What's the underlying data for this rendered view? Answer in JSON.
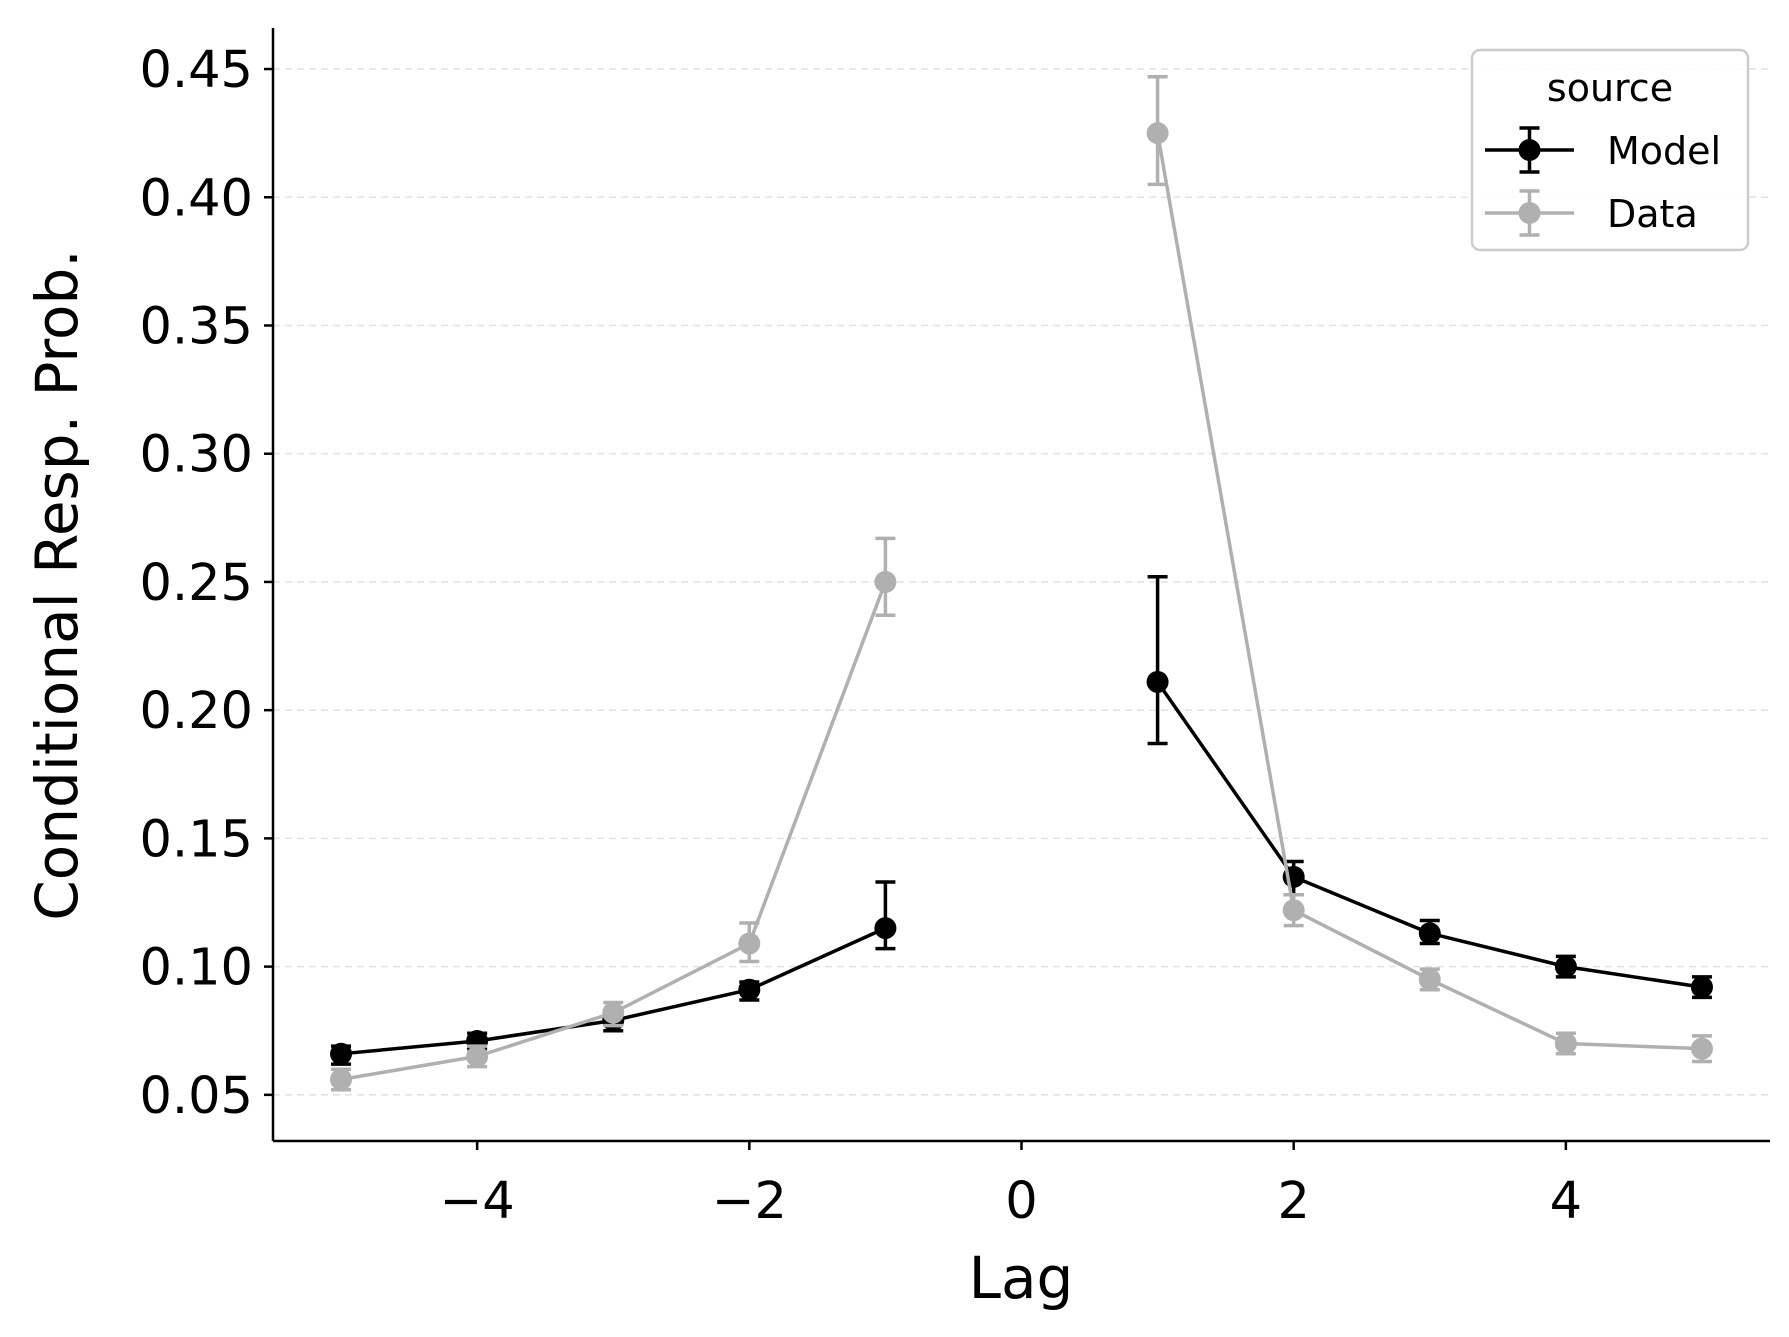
{
  "chart_data": {
    "type": "line",
    "title": "",
    "xlabel": "Lag",
    "ylabel": "Conditional Resp. Prob.",
    "xlim": [
      -5.5,
      5.5
    ],
    "ylim": [
      0.032,
      0.466
    ],
    "xticks": [
      -4,
      -2,
      0,
      2,
      4
    ],
    "xtick_labels": [
      "−4",
      "−2",
      "0",
      "2",
      "4"
    ],
    "yticks": [
      0.05,
      0.1,
      0.15,
      0.2,
      0.25,
      0.3,
      0.35,
      0.4,
      0.45
    ],
    "ytick_labels": [
      "0.05",
      "0.10",
      "0.15",
      "0.20",
      "0.25",
      "0.30",
      "0.35",
      "0.40",
      "0.45"
    ],
    "grid": "horizontal dashed",
    "legend": {
      "title": "source",
      "position": "top-right"
    },
    "series": [
      {
        "name": "Model",
        "color": "#000000",
        "segments": [
          {
            "x": [
              -5,
              -4,
              -3,
              -2,
              -1
            ],
            "y": [
              0.066,
              0.071,
              0.079,
              0.091,
              0.115
            ],
            "err_low": [
              0.062,
              0.068,
              0.075,
              0.087,
              0.107
            ],
            "err_high": [
              0.069,
              0.074,
              0.083,
              0.094,
              0.133
            ]
          },
          {
            "x": [
              1,
              2,
              3,
              4,
              5
            ],
            "y": [
              0.211,
              0.135,
              0.113,
              0.1,
              0.092
            ],
            "err_low": [
              0.187,
              0.128,
              0.109,
              0.096,
              0.088
            ],
            "err_high": [
              0.252,
              0.141,
              0.118,
              0.104,
              0.096
            ]
          }
        ]
      },
      {
        "name": "Data",
        "color": "#b0b0b0",
        "segments": [
          {
            "x": [
              -5,
              -4,
              -3,
              -2,
              -1
            ],
            "y": [
              0.056,
              0.065,
              0.082,
              0.109,
              0.25
            ],
            "err_low": [
              0.052,
              0.061,
              0.077,
              0.102,
              0.237
            ],
            "err_high": [
              0.06,
              0.069,
              0.086,
              0.117,
              0.267
            ]
          },
          {
            "x": [
              1,
              2,
              3,
              4,
              5
            ],
            "y": [
              0.425,
              0.122,
              0.095,
              0.07,
              0.068
            ],
            "err_low": [
              0.405,
              0.116,
              0.091,
              0.066,
              0.063
            ],
            "err_high": [
              0.447,
              0.128,
              0.099,
              0.074,
              0.073
            ]
          }
        ]
      }
    ]
  }
}
